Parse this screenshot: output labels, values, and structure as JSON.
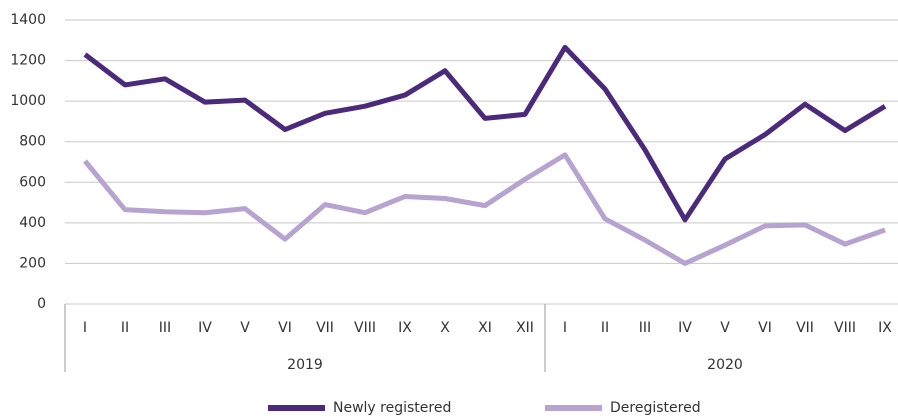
{
  "chart_data": {
    "type": "line",
    "categories": [
      "I",
      "II",
      "III",
      "IV",
      "V",
      "VI",
      "VII",
      "VIII",
      "IX",
      "X",
      "XI",
      "XII",
      "I",
      "II",
      "III",
      "IV",
      "V",
      "VI",
      "VII",
      "VIII",
      "IX"
    ],
    "groups": [
      {
        "label": "2019",
        "count": 12
      },
      {
        "label": "2020",
        "count": 9
      }
    ],
    "series": [
      {
        "name": "Newly registered",
        "color": "#4b2a7b",
        "values": [
          1230,
          1080,
          1110,
          995,
          1005,
          860,
          940,
          975,
          1030,
          1150,
          915,
          935,
          1265,
          1060,
          760,
          415,
          715,
          835,
          985,
          855,
          975
        ]
      },
      {
        "name": "Deregistered",
        "color": "#b6a3d0",
        "values": [
          705,
          465,
          455,
          450,
          470,
          320,
          490,
          450,
          530,
          520,
          485,
          615,
          735,
          420,
          315,
          200,
          290,
          385,
          390,
          295,
          365
        ]
      }
    ],
    "ylim": [
      0,
      1400
    ],
    "yticks": [
      0,
      200,
      400,
      600,
      800,
      1000,
      1200,
      1400
    ],
    "grid": true,
    "legend": "bottom"
  }
}
